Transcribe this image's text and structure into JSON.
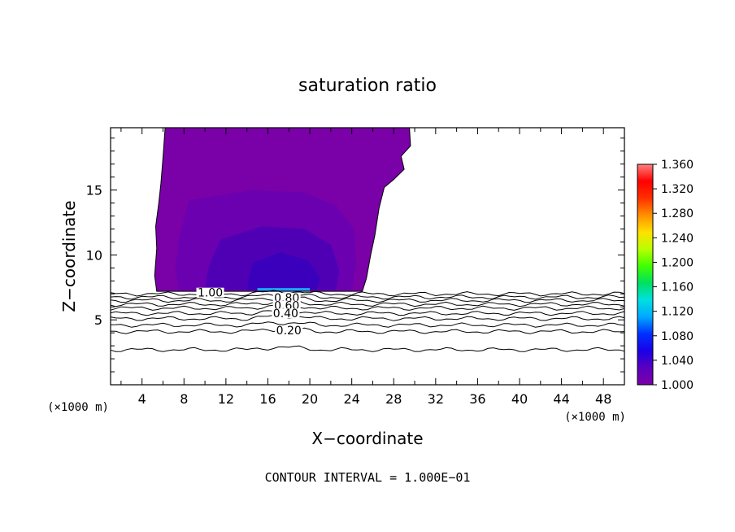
{
  "chart_data": {
    "type": "contour",
    "title": "saturation ratio",
    "xlabel": "X−coordinate",
    "ylabel": "Z−coordinate",
    "x_unit_left": "(×1000 m)",
    "x_unit_right": "(×1000 m)",
    "footer": "CONTOUR INTERVAL = 1.000E−01",
    "xlim": [
      1,
      50
    ],
    "ylim": [
      0,
      19.8
    ],
    "x_ticks": [
      4,
      8,
      12,
      16,
      20,
      24,
      28,
      32,
      36,
      40,
      44,
      48
    ],
    "y_ticks": [
      5,
      10,
      15
    ],
    "contour_interval": 0.1,
    "contour_labels": [
      {
        "text": "1.00",
        "x": 10.5,
        "y": 7.1
      },
      {
        "text": "0.80",
        "x": 17.8,
        "y": 6.7
      },
      {
        "text": "0.60",
        "x": 17.8,
        "y": 6.1
      },
      {
        "text": "0.40",
        "x": 17.7,
        "y": 5.5
      },
      {
        "text": "0.20",
        "x": 18.0,
        "y": 4.2
      }
    ],
    "contour_lines": [
      {
        "level": 1.0,
        "z": 7.0
      },
      {
        "level": 0.9,
        "z": 6.75
      },
      {
        "level": 0.8,
        "z": 6.5
      },
      {
        "level": 0.7,
        "z": 6.2
      },
      {
        "level": 0.6,
        "z": 5.9
      },
      {
        "level": 0.5,
        "z": 5.5
      },
      {
        "level": 0.4,
        "z": 5.1
      },
      {
        "level": 0.3,
        "z": 4.6
      },
      {
        "level": 0.2,
        "z": 4.1
      },
      {
        "level": 0.1,
        "z": 2.7
      }
    ],
    "filled_regions": [
      {
        "level": 1.0,
        "description_color": "#7a00a8"
      },
      {
        "level": 1.01,
        "description_color": "#6a00b0"
      },
      {
        "level": 1.02,
        "description_color": "#5000b4"
      },
      {
        "level": 1.03,
        "description_color": "#3a00bc"
      },
      {
        "level": 1.07,
        "description_color": "#19a8ff"
      }
    ],
    "colorbar": {
      "labels": [
        "1.000",
        "1.040",
        "1.080",
        "1.120",
        "1.160",
        "1.200",
        "1.240",
        "1.280",
        "1.320",
        "1.360"
      ],
      "min": 1.0,
      "max": 1.36,
      "colors": [
        "#7d00a8",
        "#5a00c0",
        "#1a00e6",
        "#0030ff",
        "#00a8ff",
        "#00e0e0",
        "#00e060",
        "#40ff00",
        "#b8ff00",
        "#ffe000",
        "#ff9000",
        "#ff3000",
        "#ff0000",
        "#ff8080"
      ]
    }
  }
}
